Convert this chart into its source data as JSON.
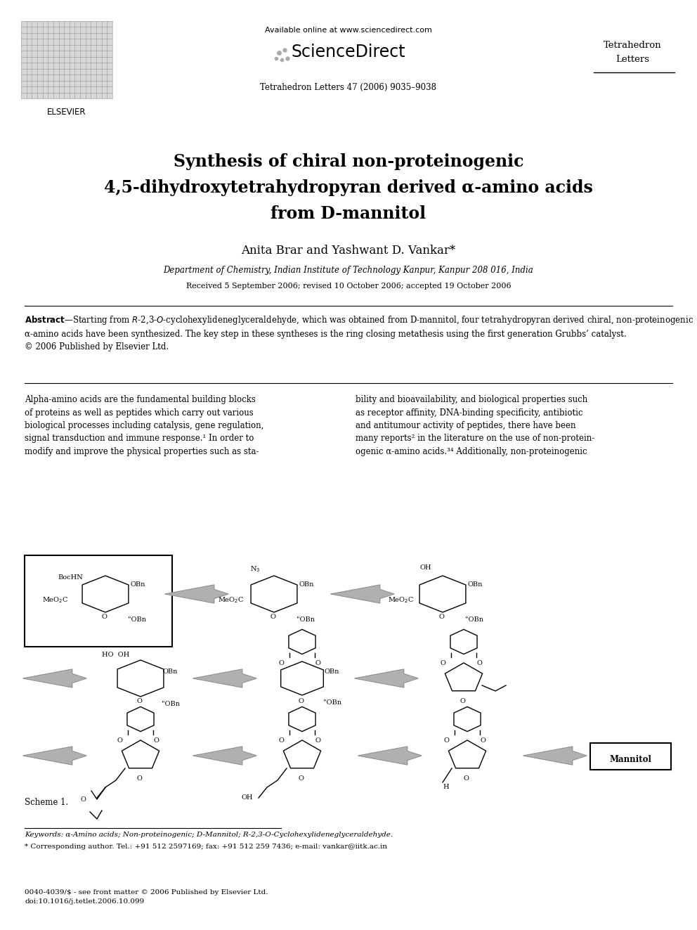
{
  "page_width": 9.92,
  "page_height": 13.23,
  "bg_color": "#ffffff",
  "header": {
    "available_online": "Available online at www.sciencedirect.com",
    "sciencedirect": "ScienceDirect",
    "journal_name": "Tetrahedron\nLetters",
    "journal_issue": "Tetrahedron Letters 47 (2006) 9035–9038"
  },
  "title": {
    "line1": "Synthesis of chiral non-proteinogenic",
    "line2": "4,5-dihydroxytetrahydropyran derived α-amino acids",
    "line3": "from D-mannitol"
  },
  "authors": "Anita Brar and Yashwant D. Vankar*",
  "affiliation": "Department of Chemistry, Indian Institute of Technology Kanpur, Kanpur 208 016, India",
  "received": "Received 5 September 2006; revised 10 October 2006; accepted 19 October 2006",
  "abstract_body": "Starting from R-2,3-O-cyclohexylideneglyceraldehyde, which was obtained from D-mannitol, four tetrahydropyran derived chiral, non-proteinogenic α-amino acids have been synthesized. The key step in these syntheses is the ring closing metathesis using the first generation Grubbs’ catalyst.\n© 2006 Published by Elsevier Ltd.",
  "body_left": "Alpha-amino acids are the fundamental building blocks\nof proteins as well as peptides which carry out various\nbiological processes including catalysis, gene regulation,\nsignal transduction and immune response.¹ In order to\nmodify and improve the physical properties such as sta-",
  "body_right": "bility and bioavailability, and biological properties such\nas receptor affinity, DNA-binding specificity, antibiotic\nand antitumour activity of peptides, there have been\nmany reports² in the literature on the use of non-protein-\nogenic α-amino acids.³⁴ Additionally, non-proteinogenic",
  "scheme_label": "Scheme 1.",
  "keywords": "Keywords: α-Amino acids; Non-proteinogenic; D-Mannitol; R-2,3-O-Cyclohexylideneglyceraldehyde.",
  "corresponding": "* Corresponding author. Tel.: +91 512 2597169; fax: +91 512 259 7436; e-mail: vankar@iitk.ac.in",
  "footer": "0040-4039/$ - see front matter © 2006 Published by Elsevier Ltd.\ndoi:10.1016/j.tetlet.2006.10.099"
}
